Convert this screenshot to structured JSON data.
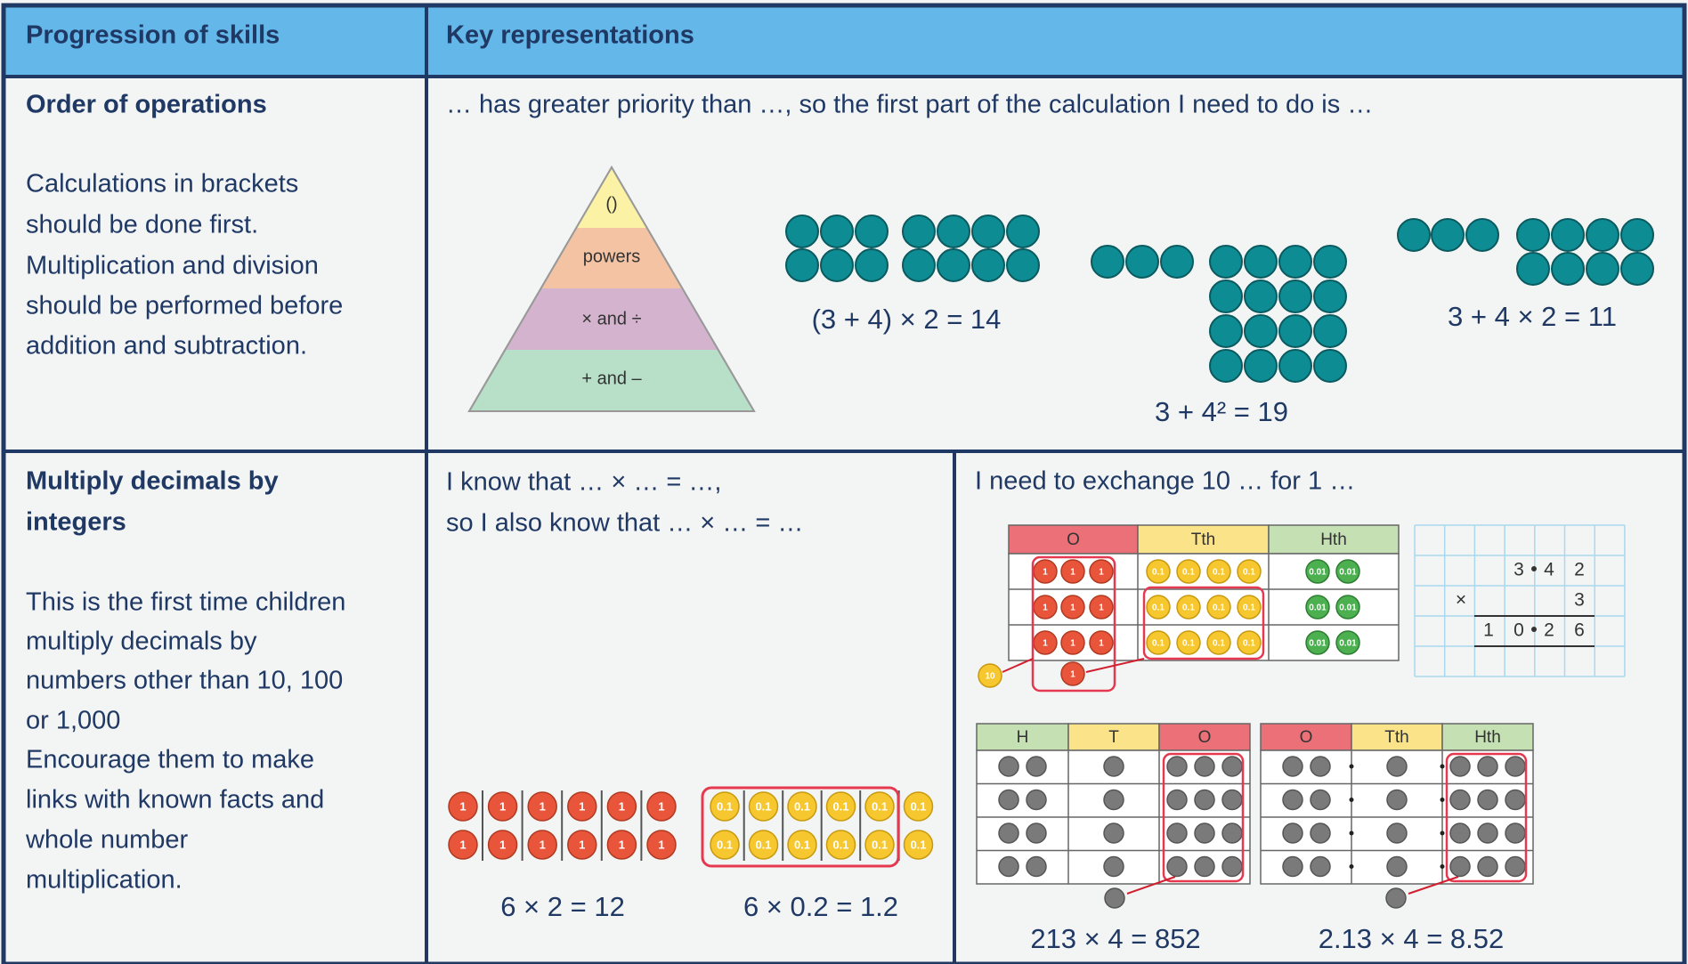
{
  "header": [
    "Progression of skills",
    "Key representations"
  ],
  "rows": [
    {
      "skill": [
        "Order of operations"
      ],
      "description": [
        "Calculations in brackets",
        "should be done first.",
        "Multiplication and division",
        "should be performed before",
        "addition and subtraction."
      ],
      "stem": "… has greater priority than …, so the first part of the calculation I need to do is …",
      "pyramid": [
        "()",
        "powers",
        "× and ÷",
        "+ and –"
      ],
      "equations": [
        "(3 + 4) × 2 = 14",
        "3 + 4² = 19",
        "3 + 4 × 2 = 11"
      ]
    },
    {
      "skill": [
        "Multiply decimals by",
        "integers"
      ],
      "description": [
        "This is the first time children",
        "multiply decimals by",
        "numbers other than 10, 100",
        "or 1,000",
        "Encourage them to make",
        "links with known facts and",
        "whole number",
        "multiplication."
      ],
      "stems": [
        "I know that … ×  … =  …,",
        "so I also know that … ×  …  = …",
        "I need to exchange 10 … for 1 …"
      ],
      "counters": [
        "1",
        "0.1",
        "0.01",
        "10"
      ],
      "place_value_headers": [
        "H",
        "T",
        "O",
        "Tth",
        "Hth"
      ],
      "column_method": [
        "3",
        "4",
        "2",
        "×",
        "3",
        "1",
        "0",
        "2",
        "6"
      ],
      "equations": [
        "6 × 2 = 12",
        "6 × 0.2 = 1.2",
        "213 × 4 = 852",
        "2.13 × 4 = 8.52"
      ]
    }
  ]
}
